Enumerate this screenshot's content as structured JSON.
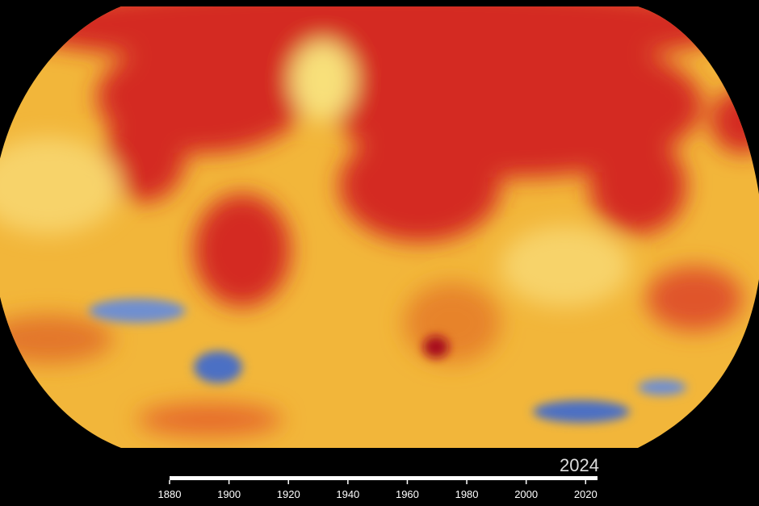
{
  "timeline": {
    "current": 2024,
    "xlim": [
      1880,
      2024
    ],
    "xticks": [
      1880,
      1900,
      1920,
      1940,
      1960,
      1980,
      2000,
      2020
    ]
  }
}
